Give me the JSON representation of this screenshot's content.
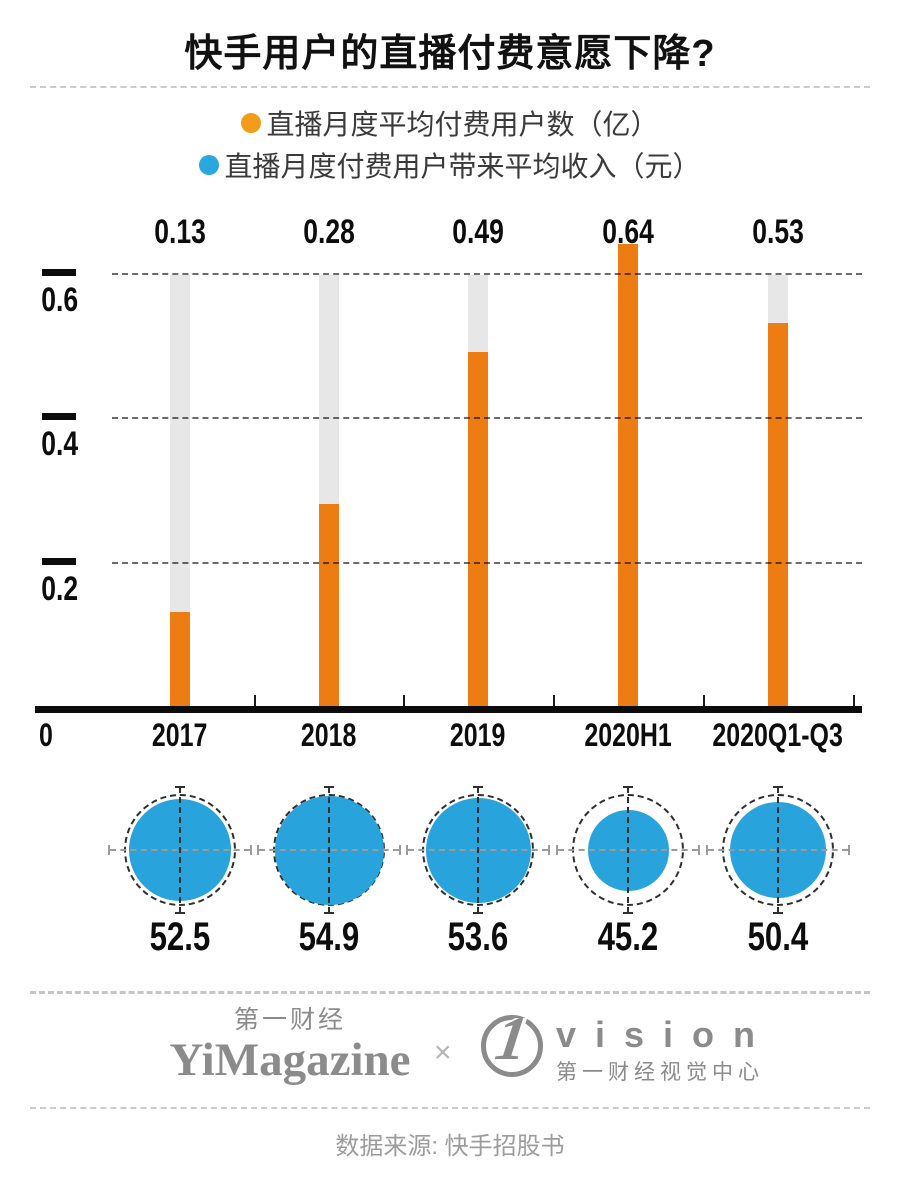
{
  "title": "快手用户的直播付费意愿下降?",
  "chart_data": {
    "type": "bar",
    "title": "快手用户的直播付费意愿下降?",
    "categories": [
      "2017",
      "2018",
      "2019",
      "2020H1",
      "2020Q1-Q3"
    ],
    "series": [
      {
        "name": "直播月度平均付费用户数（亿）",
        "type": "bar",
        "color": "#ED7D12",
        "legend_dot_color": "#F29C1A",
        "values": [
          0.13,
          0.28,
          0.49,
          0.64,
          0.53
        ],
        "labels": [
          "0.13",
          "0.28",
          "0.49",
          "0.64",
          "0.53"
        ]
      },
      {
        "name": "直播月度付费用户带来平均收入（元）",
        "type": "bubble",
        "color": "#29A3DC",
        "legend_dot_color": "#2BA7E0",
        "values": [
          52.5,
          54.9,
          53.6,
          45.2,
          50.4
        ],
        "labels": [
          "52.5",
          "54.9",
          "53.6",
          "45.2",
          "50.4"
        ]
      }
    ],
    "y_axis": {
      "origin_label": "0",
      "ticks": [
        {
          "value": 0.2,
          "label": "0.2"
        },
        {
          "value": 0.4,
          "label": "0.4"
        },
        {
          "value": 0.6,
          "label": "0.6"
        }
      ],
      "range": [
        0,
        0.6
      ]
    },
    "grid": "dashed-horizontal",
    "track_color": "#e7e7e7",
    "legend_position": "top-center"
  },
  "footer": {
    "brand_cn": "第一财经",
    "brand_en": "YiMagazine",
    "cross": "×",
    "vision_numeral": "1",
    "vision_word": "vision",
    "vision_sub": "第一财经视觉中心"
  },
  "source": "数据来源: 快手招股书"
}
